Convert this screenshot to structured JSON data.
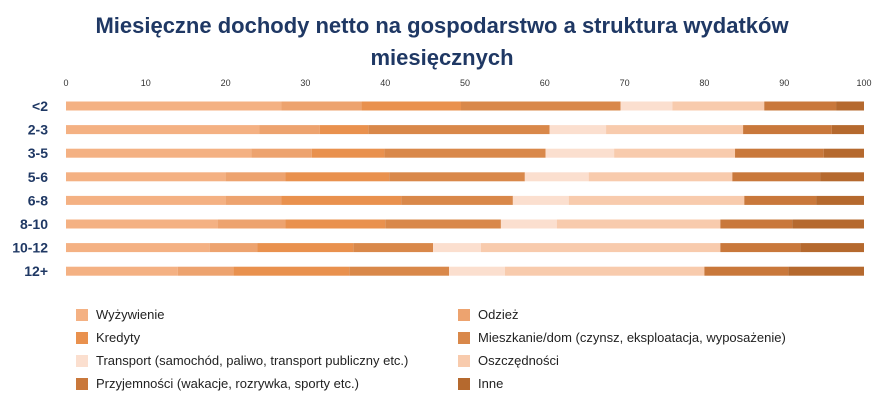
{
  "chart_data": {
    "type": "bar",
    "orientation": "horizontal",
    "stacked": true,
    "percent": true,
    "title_line1": "Miesięczne dochody netto na gospodarstwo a struktura wydatków",
    "title_line2": "miesięcznych",
    "xlim": [
      0,
      100
    ],
    "xticks": [
      "0",
      "10",
      "20",
      "30",
      "40",
      "50",
      "60",
      "70",
      "80",
      "90",
      "100"
    ],
    "categories": [
      "<2",
      "2-3",
      "3-5",
      "5-6",
      "6-8",
      "8-10",
      "10-12",
      "12+"
    ],
    "legend_position": "bottom",
    "series": [
      {
        "name": "Wyżywienie",
        "color": "#f4b183",
        "values": [
          27,
          24,
          23,
          20,
          20,
          19,
          18,
          14
        ]
      },
      {
        "name": "Odzież",
        "color": "#eda36f",
        "values": [
          10,
          7.5,
          7.5,
          7.5,
          7,
          8.5,
          6,
          7
        ]
      },
      {
        "name": "Kredyty",
        "color": "#e9914e",
        "values": [
          12.5,
          6,
          9,
          13,
          15,
          12.5,
          12,
          14.5
        ]
      },
      {
        "name": "Mieszkanie/dom (czynsz, eksploatacja, wyposażenie)",
        "color": "#d9884a",
        "values": [
          20,
          22.5,
          20,
          17,
          14,
          14.5,
          10,
          12.5
        ]
      },
      {
        "name": "Transport (samochód, paliwo, transport publiczny etc.)",
        "color": "#fbdfcf",
        "values": [
          6.5,
          7,
          8.5,
          8,
          7,
          7,
          6,
          7
        ]
      },
      {
        "name": "Oszczędności",
        "color": "#f8cbad",
        "values": [
          11.5,
          17,
          15,
          18,
          22,
          20.5,
          30,
          25
        ]
      },
      {
        "name": "Przyjemności (wakacje, rozrywka, sporty etc.)",
        "color": "#c9783b",
        "values": [
          9,
          11,
          11,
          11,
          9,
          9,
          10,
          10.5
        ]
      },
      {
        "name": "Inne",
        "color": "#b5692e",
        "values": [
          3.5,
          4,
          5,
          5.5,
          6,
          9,
          8,
          9.5
        ]
      }
    ]
  }
}
